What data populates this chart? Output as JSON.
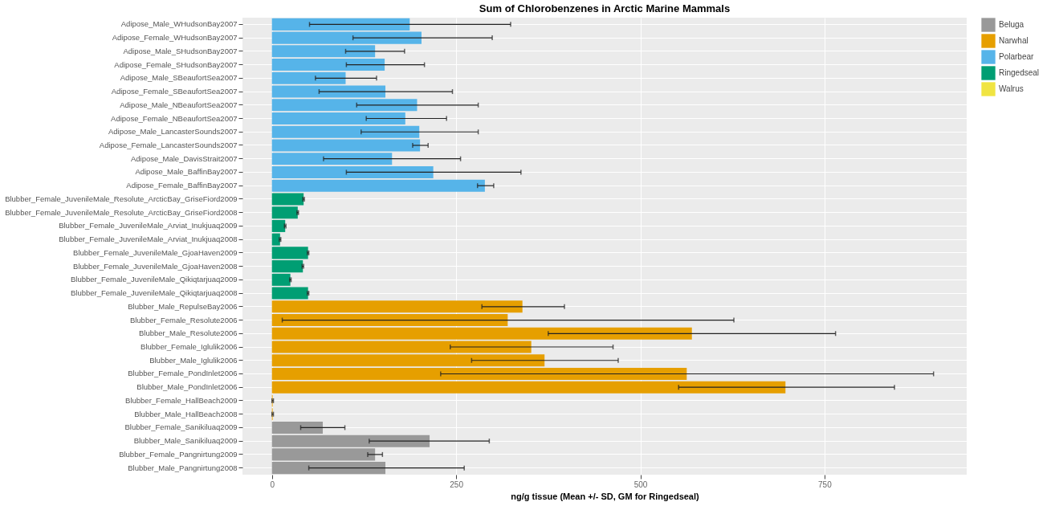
{
  "chart_data": {
    "type": "bar",
    "orientation": "horizontal",
    "title": "Sum of Chlorobenzenes in Arctic Marine Mammals",
    "xlabel": "ng/g tissue (Mean +/- SD, GM for Ringedseal)",
    "categories": [
      "Adipose_Male_WHudsonBay2007",
      "Adipose_Female_WHudsonBay2007",
      "Adipose_Male_SHudsonBay2007",
      "Adipose_Female_SHudsonBay2007",
      "Adipose_Male_SBeaufortSea2007",
      "Adipose_Female_SBeaufortSea2007",
      "Adipose_Male_NBeaufortSea2007",
      "Adipose_Female_NBeaufortSea2007",
      "Adipose_Male_LancasterSounds2007",
      "Adipose_Female_LancasterSounds2007",
      "Adipose_Male_DavisStrait2007",
      "Adipose_Male_BaffinBay2007",
      "Adipose_Female_BaffinBay2007",
      "Blubber_Female_JuvenileMale_Resolute_ArcticBay_GriseFiord2009",
      "Blubber_Female_JuvenileMale_Resolute_ArcticBay_GriseFiord2008",
      "Blubber_Female_JuvenileMale_Arviat_Inukjuaq2009",
      "Blubber_Female_JuvenileMale_Arviat_Inukjuaq2008",
      "Blubber_Female_JuvenileMale_GjoaHaven2009",
      "Blubber_Female_JuvenileMale_GjoaHaven2008",
      "Blubber_Female_JuvenileMale_Qikiqtarjuaq2009",
      "Blubber_Female_JuvenileMale_Qikiqtarjuaq2008",
      "Blubber_Male_RepulseBay2006",
      "Blubber_Female_Resolute2006",
      "Blubber_Male_Resolute2006",
      "Blubber_Female_Iglulik2006",
      "Blubber_Male_Iglulik2006",
      "Blubber_Female_PondInlet2006",
      "Blubber_Male_PondInlet2006",
      "Blubber_Female_HallBeach2009",
      "Blubber_Male_HallBeach2008",
      "Blubber_Female_Sanikiluaq2009",
      "Blubber_Male_Sanikiluaq2009",
      "Blubber_Female_Pangnirtung2009",
      "Blubber_Male_Pangnirtung2008"
    ],
    "series": [
      {
        "name": "Beluga",
        "color": "#999999",
        "values": [
          null,
          null,
          null,
          null,
          null,
          null,
          null,
          null,
          null,
          null,
          null,
          null,
          null,
          null,
          null,
          null,
          null,
          null,
          null,
          null,
          null,
          null,
          null,
          null,
          null,
          null,
          null,
          null,
          null,
          null,
          69,
          214,
          140,
          154
        ],
        "errors": [
          null,
          null,
          null,
          null,
          null,
          null,
          null,
          null,
          null,
          null,
          null,
          null,
          null,
          null,
          null,
          null,
          null,
          null,
          null,
          null,
          null,
          null,
          null,
          null,
          null,
          null,
          null,
          null,
          null,
          null,
          [
            39,
            99
          ],
          [
            132,
            295
          ],
          [
            130,
            150
          ],
          [
            50,
            261
          ]
        ]
      },
      {
        "name": "Narwhal",
        "color": "#e69f00",
        "values": [
          null,
          null,
          null,
          null,
          null,
          null,
          null,
          null,
          null,
          null,
          null,
          null,
          null,
          null,
          null,
          null,
          null,
          null,
          null,
          null,
          null,
          340,
          320,
          570,
          352,
          370,
          563,
          697,
          1,
          1,
          null,
          null,
          null,
          null
        ],
        "errors": [
          null,
          null,
          null,
          null,
          null,
          null,
          null,
          null,
          null,
          null,
          null,
          null,
          null,
          null,
          null,
          null,
          null,
          null,
          null,
          null,
          null,
          [
            285,
            397
          ],
          [
            14,
            627
          ],
          [
            375,
            765
          ],
          [
            242,
            463
          ],
          [
            271,
            470
          ],
          [
            229,
            898
          ],
          [
            552,
            845
          ],
          1,
          1,
          null,
          null,
          null,
          null
        ]
      },
      {
        "name": "Polarbear",
        "color": "#56b4e9",
        "values": [
          187,
          203,
          140,
          153,
          100,
          154,
          197,
          181,
          200,
          201,
          163,
          219,
          289,
          null,
          null,
          null,
          null,
          null,
          null,
          null,
          null,
          null,
          null,
          null,
          null,
          null,
          null,
          null,
          null,
          null,
          null,
          null,
          null,
          null
        ],
        "errors": [
          [
            51,
            324
          ],
          [
            110,
            299
          ],
          [
            100,
            180
          ],
          [
            101,
            207
          ],
          [
            59,
            142
          ],
          [
            64,
            245
          ],
          [
            115,
            280
          ],
          [
            128,
            237
          ],
          [
            121,
            280
          ],
          [
            191,
            212
          ],
          [
            70,
            256
          ],
          [
            101,
            338
          ],
          [
            279,
            301
          ],
          null,
          null,
          null,
          null,
          null,
          null,
          null,
          null,
          null,
          null,
          null,
          null,
          null,
          null,
          null,
          null,
          null,
          null,
          null,
          null,
          null
        ]
      },
      {
        "name": "Ringedseal",
        "color": "#009e73",
        "values": [
          null,
          null,
          null,
          null,
          null,
          null,
          null,
          null,
          null,
          null,
          null,
          null,
          null,
          43,
          35,
          18,
          11,
          49,
          42,
          25,
          49,
          null,
          null,
          null,
          null,
          null,
          null,
          null,
          null,
          null,
          null,
          null,
          null,
          null
        ],
        "errors": [
          null,
          null,
          null,
          null,
          null,
          null,
          null,
          null,
          null,
          null,
          null,
          null,
          null,
          1,
          1,
          1,
          1,
          1,
          1,
          1,
          1,
          null,
          null,
          null,
          null,
          null,
          null,
          null,
          null,
          null,
          null,
          null,
          null,
          null
        ]
      },
      {
        "name": "Walrus",
        "color": "#f0e442",
        "values": [
          null,
          null,
          null,
          null,
          null,
          null,
          null,
          null,
          null,
          null,
          null,
          null,
          null,
          null,
          null,
          null,
          null,
          null,
          null,
          null,
          null,
          null,
          null,
          null,
          null,
          null,
          null,
          null,
          null,
          null,
          null,
          null,
          null,
          null
        ]
      }
    ],
    "xlim": [
      -40,
      943
    ],
    "xticks": [
      0,
      250,
      500,
      750
    ],
    "grid": true,
    "legend": "right"
  }
}
